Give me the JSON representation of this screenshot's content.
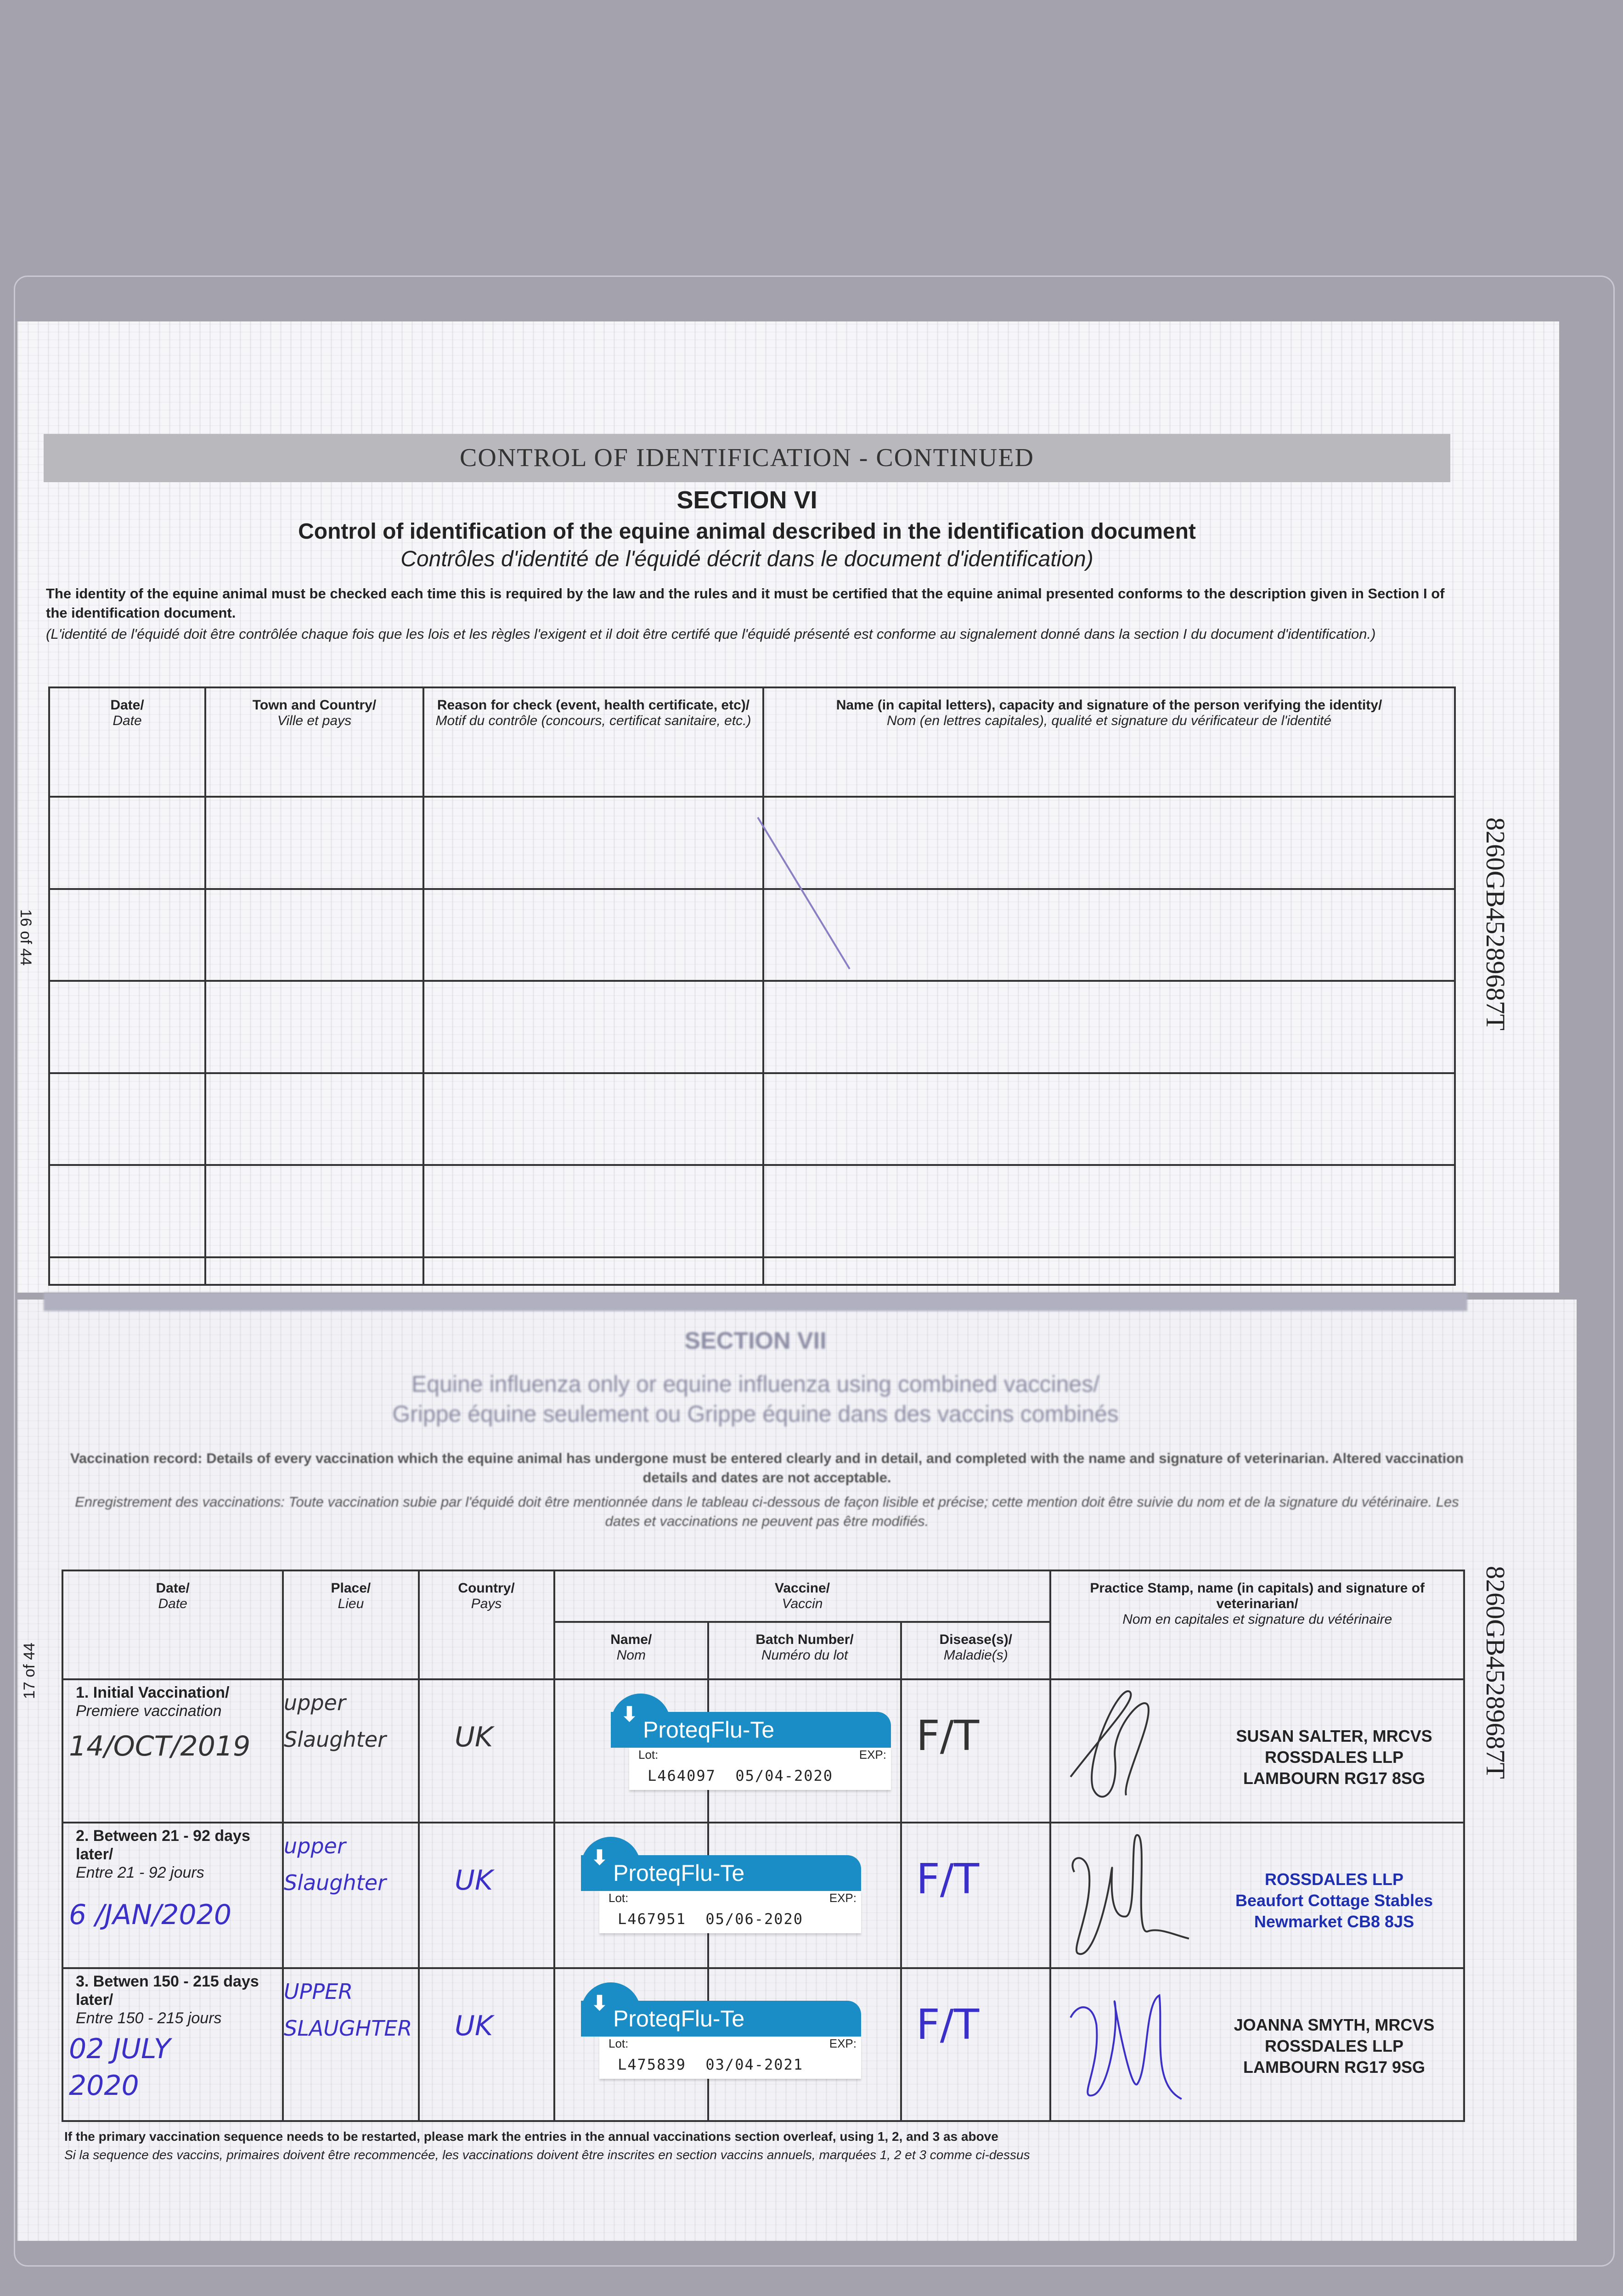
{
  "top_page": {
    "band_title": "CONTROL OF IDENTIFICATION - CONTINUED",
    "section": "SECTION VI",
    "title": "Control of identification of the equine animal described in the identification document",
    "title_fr": "Contrôles d'identité de l'équidé décrit dans le document d'identification)",
    "intro": "The identity of the equine animal must be checked each time this is required by the law and the rules and it must be certified that the equine animal presented conforms to the description given in Section I of the identification document.",
    "intro_fr": "(L'identité de l'équidé doit être contrôlée chaque fois que les lois et les règles l'exigent et il doit être certifé que l'équidé présenté est conforme au signalement donné dans la section I du document d'identification.)",
    "columns": [
      {
        "en": "Date/",
        "fr": "Date"
      },
      {
        "en": "Town and Country/",
        "fr": "Ville et pays"
      },
      {
        "en": "Reason for check (event, health certificate, etc)/",
        "fr": "Motif du contrôle (concours, certificat sanitaire, etc.)"
      },
      {
        "en": "Name (in capital letters), capacity and signature of the person verifying the identity/",
        "fr": "Nom (en lettres capitales), qualité et signature du vérificateur de l'identité"
      }
    ],
    "page_number": "16 of 44",
    "document_id": "8260GB45289687T"
  },
  "bottom_page": {
    "section": "SECTION VII",
    "title": "Equine influenza only or equine influenza using combined vaccines/",
    "title_fr": "Grippe équine seulement ou Grippe équine dans des vaccins combinés",
    "intro": "Vaccination record: Details of every vaccination which the equine animal has undergone must be entered clearly and in detail, and completed with the name and signature of veterinarian. Altered vaccination details and dates are not acceptable.",
    "intro_fr": "Enregistrement des vaccinations: Toute vaccination subie par l'équidé doit être mentionnée dans le tableau ci-dessous de façon lisible et précise; cette mention doit être suivie du nom et de la signature du vétérinaire. Les dates et vaccinations ne peuvent pas être modifiés.",
    "columns": {
      "date": {
        "en": "Date/",
        "fr": "Date"
      },
      "place": {
        "en": "Place/",
        "fr": "Lieu"
      },
      "country": {
        "en": "Country/",
        "fr": "Pays"
      },
      "vaccine": {
        "en": "Vaccine/",
        "fr": "Vaccin"
      },
      "name": {
        "en": "Name/",
        "fr": "Nom"
      },
      "batch": {
        "en": "Batch Number/",
        "fr": "Numéro du lot"
      },
      "disease": {
        "en": "Disease(s)/",
        "fr": "Maladie(s)"
      },
      "vet": {
        "en": "Practice Stamp, name (in capitals) and signature of veterinarian/",
        "fr": "Nom en capitales et signature du vétérinaire"
      }
    },
    "rows": [
      {
        "label": "1. Initial Vaccination/",
        "label_fr": "Premiere vaccination",
        "date": "14/OCT/2019",
        "place": "upper Slaughter",
        "country": "UK",
        "vaccine": "ProteqFlu-Te",
        "lot": "Lot:",
        "exp": "EXP:",
        "batch": "L464097",
        "expiry": "05/04-2020",
        "disease": "F/T",
        "stamp": [
          "SUSAN SALTER, MRCVS",
          "ROSSDALES LLP",
          "LAMBOURN RG17 8SG"
        ],
        "ink": "#333333"
      },
      {
        "label": "2. Between 21 - 92 days later/",
        "label_fr": "Entre 21 - 92 jours",
        "date": "6 /JAN/2020",
        "place": "upper Slaughter",
        "country": "UK",
        "vaccine": "ProteqFlu-Te",
        "lot": "Lot:",
        "exp": "EXP:",
        "batch": "L467951",
        "expiry": "05/06-2020",
        "disease": "F/T",
        "stamp": [
          "ROSSDALES LLP",
          "Beaufort Cottage Stables",
          "Newmarket CB8 8JS"
        ],
        "ink": "#3a2fc8"
      },
      {
        "label": "3. Betwen 150 - 215 days later/",
        "label_fr": "Entre 150 - 215 jours",
        "date": "02 JULY 2020",
        "place": "UPPER SLAUGHTER",
        "country": "UK",
        "vaccine": "ProteqFlu-Te",
        "lot": "Lot:",
        "exp": "EXP:",
        "batch": "L475839",
        "expiry": "03/04-2021",
        "disease": "F/T",
        "stamp": [
          "JOANNA SMYTH, MRCVS",
          "ROSSDALES LLP",
          "LAMBOURN RG17 9SG"
        ],
        "ink": "#3a2fc8"
      }
    ],
    "footer": "If the primary vaccination sequence needs to be restarted, please mark the entries in the annual vaccinations section overleaf, using 1, 2, and 3 as above",
    "footer_fr": "Si la sequence des vaccins, primaires doivent être recommencée, les vaccinations doivent être inscrites en section vaccins annuels, marquées 1, 2 et 3 comme ci-dessus",
    "page_number": "17 of 44",
    "document_id": "8260GB45289687T"
  },
  "colors": {
    "vaccine_label": "#1a8cc6",
    "blue_ink": "#3a2fc8",
    "band": "#b9b9bd"
  }
}
